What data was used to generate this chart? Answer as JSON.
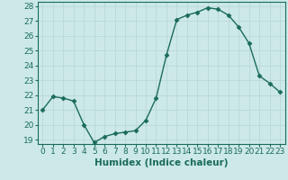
{
  "x": [
    0,
    1,
    2,
    3,
    4,
    5,
    6,
    7,
    8,
    9,
    10,
    11,
    12,
    13,
    14,
    15,
    16,
    17,
    18,
    19,
    20,
    21,
    22,
    23
  ],
  "y": [
    21.0,
    21.9,
    21.8,
    21.6,
    20.0,
    18.8,
    19.2,
    19.4,
    19.5,
    19.6,
    20.3,
    21.8,
    24.7,
    27.1,
    27.4,
    27.6,
    27.9,
    27.8,
    27.4,
    26.6,
    25.5,
    23.3,
    22.8,
    22.2
  ],
  "line_color": "#1a6b5a",
  "marker": "D",
  "marker_size": 2.5,
  "bg_color": "#cce9e7",
  "grid_color": "#b8d8d6",
  "xlabel": "Humidex (Indice chaleur)",
  "xlim": [
    -0.5,
    23.5
  ],
  "ylim": [
    18.7,
    28.3
  ],
  "yticks": [
    19,
    20,
    21,
    22,
    23,
    24,
    25,
    26,
    27,
    28
  ],
  "xticks": [
    0,
    1,
    2,
    3,
    4,
    5,
    6,
    7,
    8,
    9,
    10,
    11,
    12,
    13,
    14,
    15,
    16,
    17,
    18,
    19,
    20,
    21,
    22,
    23
  ],
  "tick_color": "#1a6b5a",
  "label_color": "#1a6b5a",
  "xlabel_fontsize": 7.5,
  "tick_fontsize": 6.5
}
